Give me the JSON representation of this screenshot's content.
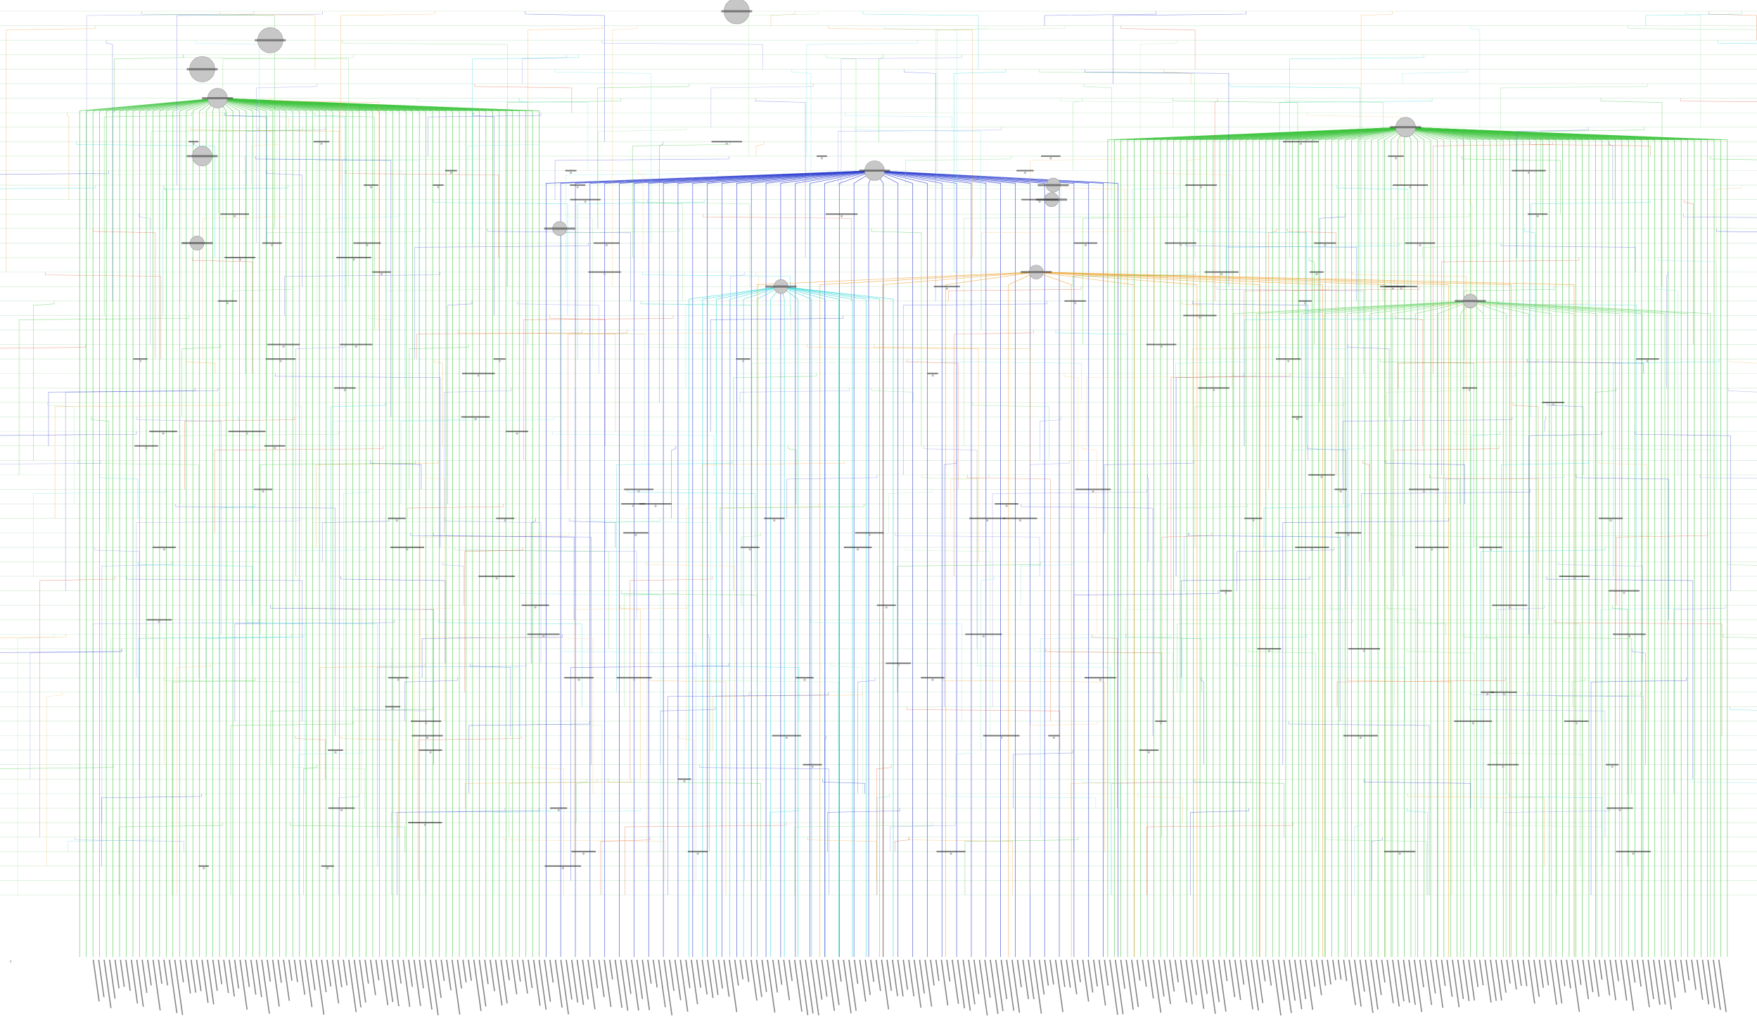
{
  "figure": {
    "background": "#ffffff",
    "row_count": 62,
    "leaf_count": 300,
    "edge_palette": [
      "#3ec43e",
      "#7ad97a",
      "#a8e6a8",
      "#2a3ccf",
      "#5561d8",
      "#8b93e3",
      "#2bd3d3",
      "#7fe4e4",
      "#f0a83a",
      "#f5c678",
      "#e0603a"
    ],
    "hub_fill": "#c7c7c7",
    "hub_stroke": "#9a9a9a",
    "node_fill": "#bbbbbb",
    "rowline_color": "#cfe8cf",
    "lowest_row_label": "0"
  },
  "hubs": [
    {
      "id": "h0",
      "row": 0,
      "col": 0.408,
      "size": 3
    },
    {
      "id": "h1",
      "row": 2,
      "col": 0.134,
      "size": 3
    },
    {
      "id": "h2",
      "row": 4,
      "col": 0.094,
      "size": 3
    },
    {
      "id": "h3",
      "row": 6,
      "col": 0.103,
      "size": 2
    },
    {
      "id": "h4",
      "row": 8,
      "col": 0.801,
      "size": 2
    },
    {
      "id": "h5",
      "row": 10,
      "col": 0.094,
      "size": 2
    },
    {
      "id": "h6",
      "row": 11,
      "col": 0.489,
      "size": 2
    },
    {
      "id": "h7",
      "row": 12,
      "col": 0.594,
      "size": 1
    },
    {
      "id": "h8",
      "row": 13,
      "col": 0.593,
      "size": 1
    },
    {
      "id": "h9",
      "row": 15,
      "col": 0.304,
      "size": 1
    },
    {
      "id": "h10",
      "row": 16,
      "col": 0.091,
      "size": 1
    },
    {
      "id": "h11",
      "row": 18,
      "col": 0.584,
      "size": 1
    },
    {
      "id": "h12",
      "row": 19,
      "col": 0.434,
      "size": 1
    },
    {
      "id": "h13",
      "row": 20,
      "col": 0.839,
      "size": 1
    }
  ],
  "fans": [
    {
      "hub": "h3",
      "color": 0,
      "from": 0.022,
      "to": 0.292,
      "count": 70,
      "bottom": 1
    },
    {
      "hub": "h4",
      "color": 0,
      "from": 0.626,
      "to": 0.99,
      "count": 95,
      "bottom": 1
    },
    {
      "hub": "h6",
      "color": 3,
      "from": 0.296,
      "to": 0.632,
      "count": 40,
      "bottom": 0.9
    },
    {
      "hub": "h11",
      "color": 8,
      "from": 0.42,
      "to": 0.9,
      "count": 14,
      "bottom": 0.9
    },
    {
      "hub": "h12",
      "color": 6,
      "from": 0.38,
      "to": 0.5,
      "count": 16,
      "bottom": 0.9
    },
    {
      "hub": "h13",
      "color": 1,
      "from": 0.7,
      "to": 0.98,
      "count": 22,
      "bottom": 0.9
    }
  ]
}
